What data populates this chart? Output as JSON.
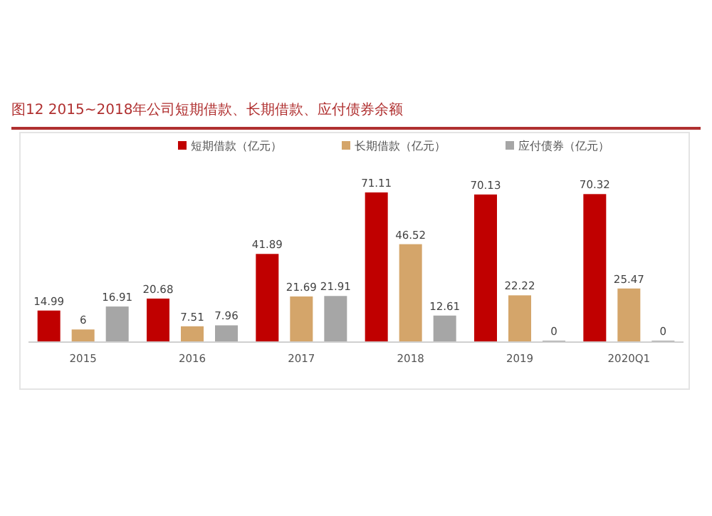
{
  "chart_data": {
    "type": "bar",
    "title": "图12  2015~2018年公司短期借款、长期借款、应付债券余额",
    "categories": [
      "2015",
      "2016",
      "2017",
      "2018",
      "2019",
      "2020Q1"
    ],
    "series": [
      {
        "name": "短期借款（亿元）",
        "color": "#c00000",
        "values": [
          14.99,
          20.68,
          41.89,
          71.11,
          70.13,
          70.32
        ]
      },
      {
        "name": "长期借款（亿元）",
        "color": "#d4a56a",
        "values": [
          6,
          7.51,
          21.69,
          46.52,
          22.22,
          25.47
        ]
      },
      {
        "name": "应付债券（亿元）",
        "color": "#a6a6a6",
        "values": [
          16.91,
          7.96,
          21.91,
          12.61,
          0,
          0
        ]
      }
    ],
    "data_labels": true,
    "legend": "top"
  }
}
